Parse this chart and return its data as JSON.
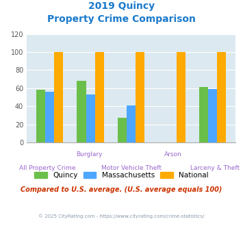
{
  "title_line1": "2019 Quincy",
  "title_line2": "Property Crime Comparison",
  "cat_labels_top": [
    "",
    "Burglary",
    "",
    "Arson",
    ""
  ],
  "cat_labels_bot": [
    "All Property Crime",
    "",
    "Motor Vehicle Theft",
    "",
    "Larceny & Theft"
  ],
  "quincy": [
    58,
    68,
    27,
    0,
    61
  ],
  "massachusetts": [
    56,
    53,
    41,
    0,
    59
  ],
  "national": [
    100,
    100,
    100,
    100,
    100
  ],
  "bar_colors": {
    "quincy": "#6abf4b",
    "massachusetts": "#4da6ff",
    "national": "#ffaa00"
  },
  "ylim": [
    0,
    120
  ],
  "yticks": [
    0,
    20,
    40,
    60,
    80,
    100,
    120
  ],
  "bg_color": "#dce9f0",
  "grid_color": "#ffffff",
  "title_color": "#1a7acc",
  "xlabel_top_color": "#9966cc",
  "xlabel_bot_color": "#9966cc",
  "note_text": "Compared to U.S. average. (U.S. average equals 100)",
  "footer_text": "© 2025 CityRating.com - https://www.cityrating.com/crime-statistics/",
  "note_color": "#cc3300",
  "footer_color": "#8899aa"
}
